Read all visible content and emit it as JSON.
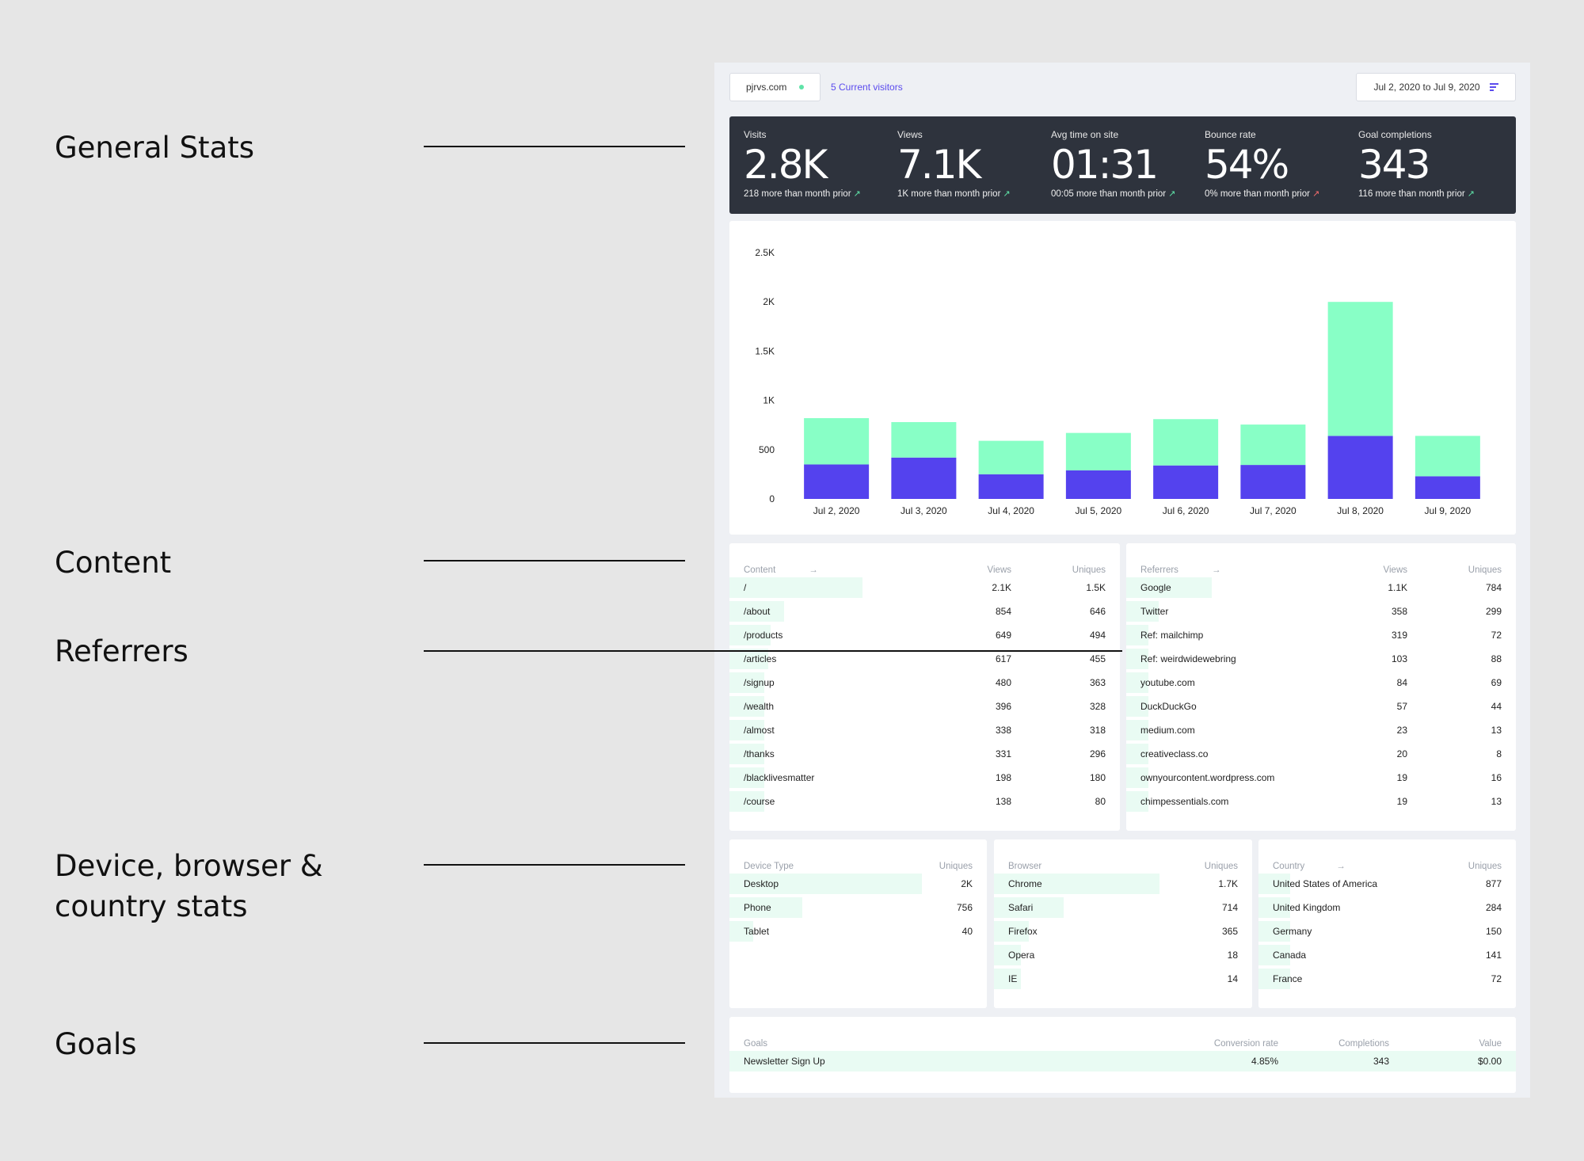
{
  "annotations": [
    "General Stats",
    "Content",
    "Referrers",
    "Device, browser &\ncountry stats",
    "Goals"
  ],
  "header": {
    "site": "pjrvs.com",
    "visitors": "5 Current visitors",
    "date_range": "Jul 2, 2020 to Jul 9, 2020",
    "menu_icon": "menu-lines-icon"
  },
  "stats": [
    {
      "label": "Visits",
      "value": "2.8K",
      "delta": "218 more than month prior",
      "trend": "up"
    },
    {
      "label": "Views",
      "value": "7.1K",
      "delta": "1K more than month prior",
      "trend": "up"
    },
    {
      "label": "Avg time on site",
      "value": "01:31",
      "delta": "00:05 more than month prior",
      "trend": "up"
    },
    {
      "label": "Bounce rate",
      "value": "54%",
      "delta": "0% more than month prior",
      "trend": "up-red"
    },
    {
      "label": "Goal completions",
      "value": "343",
      "delta": "116 more than month prior",
      "trend": "up"
    }
  ],
  "chart_data": {
    "type": "bar",
    "stacked": true,
    "categories": [
      "Jul 2, 2020",
      "Jul 3, 2020",
      "Jul 4, 2020",
      "Jul 5, 2020",
      "Jul 6, 2020",
      "Jul 7, 2020",
      "Jul 8, 2020",
      "Jul 9, 2020"
    ],
    "series": [
      {
        "color": "#5442ee",
        "values": [
          350,
          420,
          250,
          290,
          340,
          345,
          640,
          230
        ]
      },
      {
        "color": "#88ffc6",
        "values": [
          470,
          360,
          340,
          380,
          470,
          410,
          1360,
          410
        ]
      }
    ],
    "yticks": [
      "0",
      "500",
      "1K",
      "1.5K",
      "2K",
      "2.5K"
    ],
    "ylim": [
      0,
      2500
    ],
    "grid": false
  },
  "content": {
    "header": "Content",
    "col_views": "Views",
    "col_uniques": "Uniques",
    "rows": [
      {
        "label": "/",
        "views": "2.1K",
        "uniques": "1.5K",
        "share": 1.0
      },
      {
        "label": "/about",
        "views": "854",
        "uniques": "646",
        "share": 0.41
      },
      {
        "label": "/products",
        "views": "649",
        "uniques": "494",
        "share": 0.31
      },
      {
        "label": "/articles",
        "views": "617",
        "uniques": "455",
        "share": 0.29
      },
      {
        "label": "/signup",
        "views": "480",
        "uniques": "363",
        "share": 0.23
      },
      {
        "label": "/wealth",
        "views": "396",
        "uniques": "328",
        "share": 0.19
      },
      {
        "label": "/almost",
        "views": "338",
        "uniques": "318",
        "share": 0.16
      },
      {
        "label": "/thanks",
        "views": "331",
        "uniques": "296",
        "share": 0.16
      },
      {
        "label": "/blacklivesmatter",
        "views": "198",
        "uniques": "180",
        "share": 0.09
      },
      {
        "label": "/course",
        "views": "138",
        "uniques": "80",
        "share": 0.07
      }
    ]
  },
  "referrers": {
    "header": "Referrers",
    "col_views": "Views",
    "col_uniques": "Uniques",
    "rows": [
      {
        "label": "Google",
        "views": "1.1K",
        "uniques": "784",
        "share": 1.0
      },
      {
        "label": "Twitter",
        "views": "358",
        "uniques": "299",
        "share": 0.38
      },
      {
        "label": "Ref: mailchimp",
        "views": "319",
        "uniques": "72",
        "share": 0.1
      },
      {
        "label": "Ref: weirdwidewebring",
        "views": "103",
        "uniques": "88",
        "share": 0.11
      },
      {
        "label": "youtube.com",
        "views": "84",
        "uniques": "69",
        "share": 0.09
      },
      {
        "label": "DuckDuckGo",
        "views": "57",
        "uniques": "44",
        "share": 0.06
      },
      {
        "label": "medium.com",
        "views": "23",
        "uniques": "13",
        "share": 0.02
      },
      {
        "label": "creativeclass.co",
        "views": "20",
        "uniques": "8",
        "share": 0.01
      },
      {
        "label": "ownyourcontent.wordpress.com",
        "views": "19",
        "uniques": "16",
        "share": 0.02
      },
      {
        "label": "chimpessentials.com",
        "views": "19",
        "uniques": "13",
        "share": 0.02
      }
    ]
  },
  "devices": {
    "header": "Device Type",
    "col_uniques": "Uniques",
    "rows": [
      {
        "label": "Desktop",
        "uniques": "2K",
        "share": 1.0
      },
      {
        "label": "Phone",
        "uniques": "756",
        "share": 0.38
      },
      {
        "label": "Tablet",
        "uniques": "40",
        "share": 0.02
      }
    ]
  },
  "browsers": {
    "header": "Browser",
    "col_uniques": "Uniques",
    "rows": [
      {
        "label": "Chrome",
        "uniques": "1.7K",
        "share": 1.0
      },
      {
        "label": "Safari",
        "uniques": "714",
        "share": 0.42
      },
      {
        "label": "Firefox",
        "uniques": "365",
        "share": 0.21
      },
      {
        "label": "Opera",
        "uniques": "18",
        "share": 0.01
      },
      {
        "label": "IE",
        "uniques": "14",
        "share": 0.01
      }
    ]
  },
  "countries": {
    "header": "Country",
    "col_uniques": "Uniques",
    "rows": [
      {
        "label": "United States of America",
        "uniques": "877",
        "share": 1.0
      },
      {
        "label": "United Kingdom",
        "uniques": "284",
        "share": 0.32
      },
      {
        "label": "Germany",
        "uniques": "150",
        "share": 0.17
      },
      {
        "label": "Canada",
        "uniques": "141",
        "share": 0.16
      },
      {
        "label": "France",
        "uniques": "72",
        "share": 0.08
      }
    ]
  },
  "goals": {
    "header": "Goals",
    "col_rate": "Conversion rate",
    "col_completions": "Completions",
    "col_value": "Value",
    "rows": [
      {
        "label": "Newsletter Sign Up",
        "rate": "4.85%",
        "completions": "343",
        "value": "$0.00",
        "share": 1.0
      }
    ]
  }
}
